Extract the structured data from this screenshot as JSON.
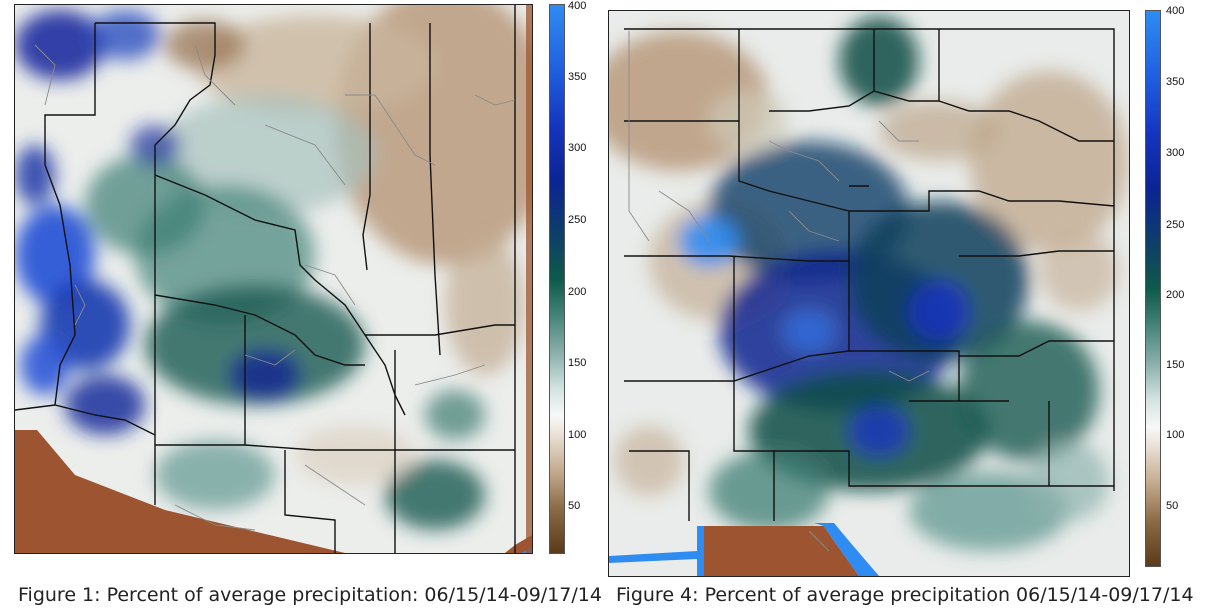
{
  "figures": [
    {
      "caption": "Figure 1: Percent of average precipitation: 06/15/14-09/17/14",
      "colorbar_ticks": [
        "400",
        "350",
        "300",
        "250",
        "200",
        "150",
        "100",
        "50"
      ]
    },
    {
      "caption": "Figure 4: Percent of average precipitation 06/15/14-09/17/14",
      "colorbar_ticks": [
        "400",
        "350",
        "300",
        "250",
        "200",
        "150",
        "100",
        "50"
      ]
    }
  ],
  "colors": {
    "dry_extreme": "#9c5530",
    "dry": "#b89a78",
    "normal": "#f2f2f0",
    "moist": "#7fa8a2",
    "wet": "#0f4d45",
    "very_wet": "#10248f",
    "extreme_wet": "#2f8cf2"
  },
  "colorbar_range": [
    0,
    400
  ]
}
